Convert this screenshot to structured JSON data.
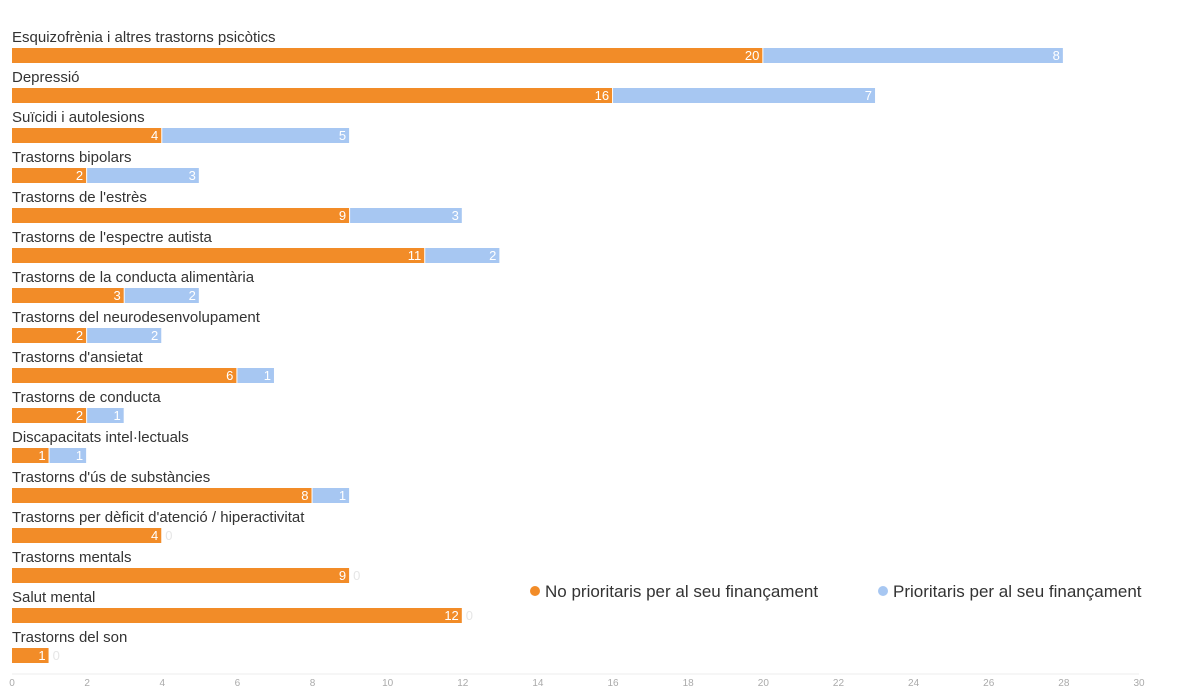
{
  "colors": {
    "no_prioritaris": "#f28c28",
    "prioritaris": "#a7c7f2"
  },
  "chart_data": {
    "type": "bar",
    "orientation": "horizontal",
    "stacked": true,
    "categories": [
      "Esquizofrènia i altres trastorns psicòtics",
      "Depressió",
      "Suïcidi i autolesions",
      "Trastorns bipolars",
      "Trastorns de l'estrès",
      "Trastorns de l'espectre autista",
      "Trastorns de la conducta alimentària",
      "Trastorns del neurodesenvolupament",
      "Trastorns d'ansietat",
      "Trastorns de conducta",
      "Discapacitats intel·lectuals",
      "Trastorns d'ús de substàncies",
      "Trastorns per dèficit d'atenció / hiperactivitat",
      "Trastorns mentals",
      "Salut mental",
      "Trastorns del son"
    ],
    "series": [
      {
        "name": "No prioritaris per al seu finançament",
        "values": [
          20,
          16,
          4,
          2,
          9,
          11,
          3,
          2,
          6,
          2,
          1,
          8,
          4,
          9,
          12,
          1
        ]
      },
      {
        "name": "Prioritaris per al seu finançament",
        "values": [
          8,
          7,
          5,
          3,
          3,
          2,
          2,
          2,
          1,
          1,
          1,
          1,
          0,
          0,
          0,
          0
        ]
      }
    ],
    "xlim": [
      0,
      30
    ],
    "xticks": [
      0,
      2,
      4,
      6,
      8,
      10,
      12,
      14,
      16,
      18,
      20,
      22,
      24,
      26,
      28,
      30
    ],
    "grid": false,
    "legend_position": "right"
  }
}
